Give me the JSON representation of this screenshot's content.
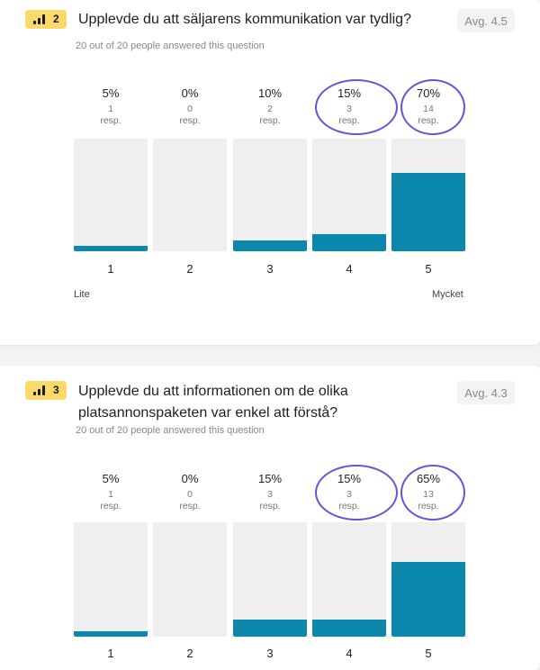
{
  "questions": [
    {
      "number": "2",
      "title": "Upplevde du att säljarens kommunikation var tydlig?",
      "avg": "Avg. 4.5",
      "answered": "20 out of 20 people answered this question",
      "low_label": "Lite",
      "high_label": "Mycket"
    },
    {
      "number": "3",
      "title": "Upplevde du att informationen om de olika platsannonspaketen var enkel att förstå?",
      "avg": "Avg. 4.3",
      "answered": "20 out of 20 people answered this question"
    }
  ],
  "chart_data": [
    {
      "type": "bar",
      "categories": [
        "1",
        "2",
        "3",
        "4",
        "5"
      ],
      "values": [
        5,
        0,
        10,
        15,
        70
      ],
      "percent_labels": [
        "5%",
        "0%",
        "10%",
        "15%",
        "70%"
      ],
      "counts": [
        "1",
        "0",
        "2",
        "3",
        "14"
      ],
      "count_unit": "resp.",
      "ylim": [
        0,
        100
      ],
      "highlighted_categories": [
        "4",
        "5"
      ],
      "colors": {
        "fill": "#0b86ad",
        "track": "#efefef",
        "highlight": "#6057d8"
      }
    },
    {
      "type": "bar",
      "categories": [
        "1",
        "2",
        "3",
        "4",
        "5"
      ],
      "values": [
        5,
        0,
        15,
        15,
        65
      ],
      "percent_labels": [
        "5%",
        "0%",
        "15%",
        "15%",
        "65%"
      ],
      "counts": [
        "1",
        "0",
        "3",
        "3",
        "13"
      ],
      "count_unit": "resp.",
      "ylim": [
        0,
        100
      ],
      "highlighted_categories": [
        "4",
        "5"
      ],
      "colors": {
        "fill": "#0b86ad",
        "track": "#efefef",
        "highlight": "#6057d8"
      }
    }
  ]
}
